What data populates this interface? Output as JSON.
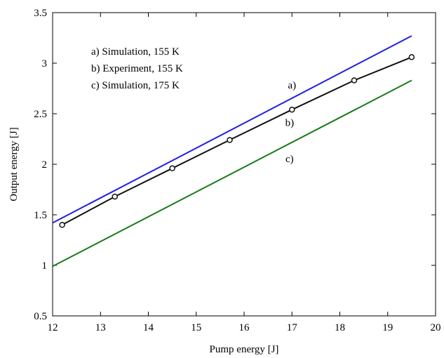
{
  "chart_data": {
    "type": "line",
    "title": "",
    "xlabel": "Pump energy [J]",
    "ylabel": "Output energy [J]",
    "xlim": [
      12,
      20
    ],
    "ylim": [
      0.5,
      3.5
    ],
    "xticks": [
      12,
      13,
      14,
      15,
      16,
      17,
      18,
      19,
      20
    ],
    "yticks": [
      0.5,
      1,
      1.5,
      2,
      2.5,
      3,
      3.5
    ],
    "xtick_labels": [
      "12",
      "13",
      "14",
      "15",
      "16",
      "17",
      "18",
      "19",
      "20"
    ],
    "ytick_labels": [
      "0.5",
      "1",
      "1.5",
      "2",
      "2.5",
      "3",
      "3.5"
    ],
    "grid": false,
    "legend_text": [
      "a) Simulation, 155 K",
      "b) Experiment, 155 K",
      "c) Simulation, 175 K"
    ],
    "series": [
      {
        "name": "a)",
        "color": "#1f1fe6",
        "markers": false,
        "x": [
          12,
          19.5
        ],
        "y": [
          1.42,
          3.27
        ]
      },
      {
        "name": "b)",
        "color": "#111111",
        "markers": true,
        "x": [
          12.2,
          13.3,
          14.5,
          15.7,
          17.0,
          18.3,
          19.5
        ],
        "y": [
          1.4,
          1.68,
          1.96,
          2.24,
          2.54,
          2.83,
          3.06
        ]
      },
      {
        "name": "c)",
        "color": "#1a7a1a",
        "markers": false,
        "x": [
          12,
          19.5
        ],
        "y": [
          0.99,
          2.83
        ]
      }
    ],
    "annotations": [
      {
        "text": "a)",
        "x": 17.0,
        "y": 2.75
      },
      {
        "text": "b)",
        "x": 16.95,
        "y": 2.38
      },
      {
        "text": "c)",
        "x": 16.95,
        "y": 2.02
      }
    ]
  }
}
